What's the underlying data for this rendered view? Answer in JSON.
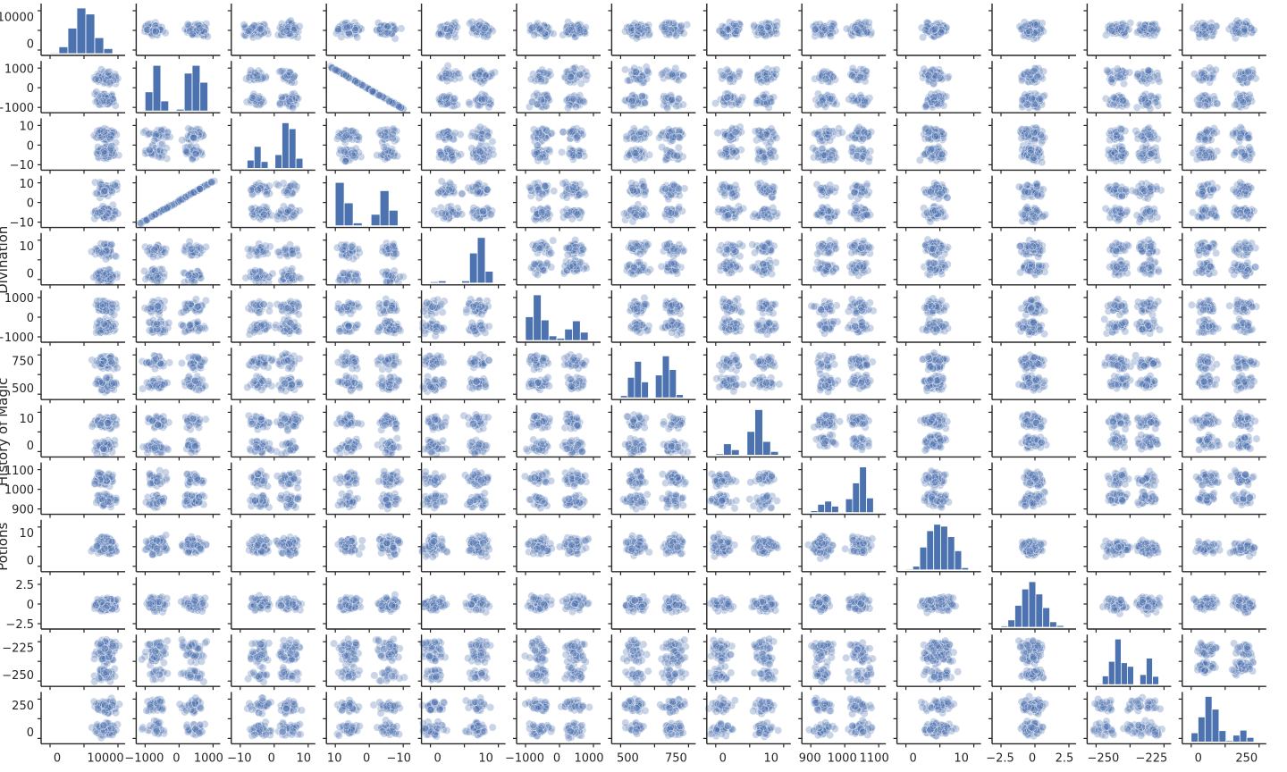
{
  "chart_data": {
    "type": "scatter",
    "kind": "pairplot",
    "title": "",
    "colors": {
      "points": "#4c72b0",
      "bars": "#4c72b0",
      "axes": "#262626"
    },
    "grid": false,
    "legend": "none",
    "n_variables": 13,
    "variables": [
      {
        "label": "",
        "min": -500,
        "max": 11000,
        "yticks": [
          0,
          10000
        ],
        "xticks": [
          0,
          10000
        ],
        "peak": 0.5,
        "lower_clusters": [
          0.8
        ],
        "left_clusters": [
          0.52
        ],
        "hist": [
          0.02,
          0.15,
          0.56,
          1.0,
          0.87,
          0.35,
          0.11
        ]
      },
      {
        "label": "",
        "min": -1050,
        "max": 1050,
        "yticks": [
          -1000,
          0,
          1000
        ],
        "xticks": [
          -1000,
          0,
          1000
        ],
        "peak": 0.65,
        "lower_clusters": [
          0.25,
          0.72
        ],
        "left_clusters": [
          0.22,
          0.76
        ],
        "hist": [
          0.42,
          1.0,
          0.22,
          0,
          0.04,
          0.83,
          1.0,
          0.63
        ]
      },
      {
        "label": "",
        "min": -11,
        "max": 13,
        "yticks": [
          -10,
          0,
          10
        ],
        "xticks": [
          -10,
          0,
          10
        ],
        "peak": 0.1,
        "lower_clusters": [
          0.35,
          0.72
        ],
        "left_clusters": [
          0.31,
          0.72
        ],
        "hist": [
          0.01,
          0.18,
          0.48,
          0.15,
          0,
          0.3,
          1.0,
          0.87,
          0.22
        ]
      },
      {
        "label": "",
        "min": -11,
        "max": 11,
        "yticks": [
          -10,
          0,
          10
        ],
        "xticks": [
          10,
          0,
          -10
        ],
        "peak": 0.62,
        "lower_clusters": [
          0.28,
          0.78
        ],
        "left_clusters": [
          0.27,
          0.76
        ],
        "hist": [
          0.95,
          0.5,
          0.06,
          0,
          0.25,
          0.77,
          0.34
        ]
      },
      {
        "label": "Divination",
        "min": -8,
        "max": 13,
        "yticks": [
          0,
          10
        ],
        "xticks": [
          0,
          10
        ],
        "peak": 0.5,
        "lower_clusters": [
          0.15,
          0.7
        ],
        "left_clusters": [
          0.33,
          0.75
        ],
        "hist": [
          0.03,
          0.05,
          0,
          0.01,
          0.05,
          0.66,
          1.0,
          0.26
        ]
      },
      {
        "label": "",
        "min": -1100,
        "max": 1100,
        "yticks": [
          -1000,
          0,
          1000
        ],
        "xticks": [
          -1000,
          0,
          1000
        ],
        "peak": 0.6,
        "lower_clusters": [
          0.28,
          0.72
        ],
        "left_clusters": [
          0.3,
          0.72
        ],
        "hist": [
          0.52,
          1.0,
          0.45,
          0.1,
          0.05,
          0.25,
          0.43,
          0.18
        ]
      },
      {
        "label": "",
        "min": 350,
        "max": 760,
        "yticks": [
          500,
          750
        ],
        "xticks": [
          500,
          750
        ],
        "peak": 0.45,
        "lower_clusters": [
          0.3,
          0.78
        ],
        "left_clusters": [
          0.32,
          0.76
        ],
        "hist": [
          0.05,
          0.45,
          0.8,
          0.35,
          0,
          0.5,
          0.92,
          0.62,
          0.07
        ]
      },
      {
        "label": "History of Magic",
        "min": -8,
        "max": 14,
        "yticks": [
          0,
          10
        ],
        "xticks": [
          0,
          10
        ],
        "peak": 0.55,
        "lower_clusters": [
          0.18,
          0.72
        ],
        "left_clusters": [
          0.29,
          0.73
        ],
        "hist": [
          0.03,
          0.25,
          0.12,
          0,
          0.52,
          1.0,
          0.3,
          0.08
        ]
      },
      {
        "label": "",
        "min": 895,
        "max": 1110,
        "yticks": [
          900,
          1000,
          1100
        ],
        "xticks": [
          900,
          1000,
          1100
        ],
        "peak": 0.7,
        "lower_clusters": [
          0.25,
          0.72
        ],
        "left_clusters": [
          0.3,
          0.72
        ],
        "hist": [
          0.04,
          0.18,
          0.25,
          0.14,
          0,
          0.3,
          0.65,
          1.0,
          0.32
        ]
      },
      {
        "label": "Potions",
        "min": -4,
        "max": 15,
        "yticks": [
          0,
          10
        ],
        "xticks": [
          0,
          10
        ],
        "peak": 0.6,
        "lower_clusters": [
          0.45,
          0.58
        ],
        "left_clusters": [
          0.47
        ],
        "hist": [
          0.02,
          0.08,
          0.5,
          0.86,
          1.0,
          0.96,
          0.73,
          0.42,
          0.05
        ]
      },
      {
        "label": "",
        "min": -3.4,
        "max": 3.4,
        "yticks": [
          -2.5,
          0.0,
          2.5
        ],
        "xticks": [
          -2.5,
          0.0,
          2.5
        ],
        "peak": 0.5,
        "lower_clusters": [
          0.5
        ],
        "left_clusters": [
          0.5
        ],
        "hist": [
          0.03,
          0.16,
          0.48,
          0.84,
          1.0,
          0.73,
          0.43,
          0.12,
          0.04
        ]
      },
      {
        "label": "",
        "min": -262,
        "max": -218,
        "yticks": [
          -250,
          -225
        ],
        "xticks": [
          -250,
          -225
        ],
        "peak": 0.45,
        "lower_clusters": [
          0.22,
          0.6,
          0.82
        ],
        "left_clusters": [
          0.38,
          0.75
        ],
        "hist": [
          0.02,
          0.19,
          0.51,
          1.0,
          0.48,
          0.4,
          0,
          0.22,
          0.58,
          0.18
        ]
      },
      {
        "label": "",
        "min": -220,
        "max": 330,
        "yticks": [
          0,
          250
        ],
        "xticks": [
          0,
          250
        ],
        "peak": 0.55,
        "lower_clusters": [
          0.28,
          0.78
        ],
        "left_clusters": [
          0.3,
          0.76
        ],
        "hist": [
          0.2,
          0.55,
          1.0,
          0.72,
          0.25,
          0.03,
          0.15,
          0.26,
          0.1
        ]
      }
    ]
  }
}
